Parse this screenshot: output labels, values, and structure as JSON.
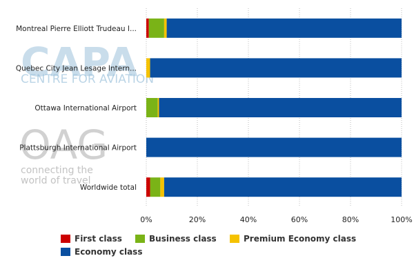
{
  "chart_data": {
    "type": "bar",
    "orientation": "horizontal",
    "stacked": "percent",
    "categories": [
      "Montreal Pierre Elliott Trudeau I...",
      "Quebec City Jean Lesage Intern...",
      "Ottawa International Airport",
      "Plattsburgh International Airport",
      "Worldwide total"
    ],
    "series": [
      {
        "name": "First class",
        "color": "#cc0000",
        "values": [
          1.0,
          0.0,
          0.0,
          0.0,
          1.5
        ]
      },
      {
        "name": "Business class",
        "color": "#7ab317",
        "values": [
          6.0,
          0.0,
          4.5,
          0.0,
          4.0
        ]
      },
      {
        "name": "Premium Economy class",
        "color": "#f5c200",
        "values": [
          1.0,
          1.5,
          0.5,
          0.0,
          1.5
        ]
      },
      {
        "name": "Economy class",
        "color": "#0a4fa0",
        "values": [
          92.0,
          98.5,
          95.0,
          100.0,
          93.0
        ]
      }
    ],
    "xlim": [
      0,
      100
    ],
    "x_ticks": [
      "0%",
      "20%",
      "40%",
      "60%",
      "80%",
      "100%"
    ],
    "grid": "vertical dotted",
    "legend_position": "bottom"
  },
  "watermarks": {
    "capa_logo": "CAPA",
    "capa_tagline": "CENTRE FOR AVIATION",
    "oag_logo": "OAG",
    "oag_tagline_1": "connecting the",
    "oag_tagline_2": "world of travel"
  }
}
